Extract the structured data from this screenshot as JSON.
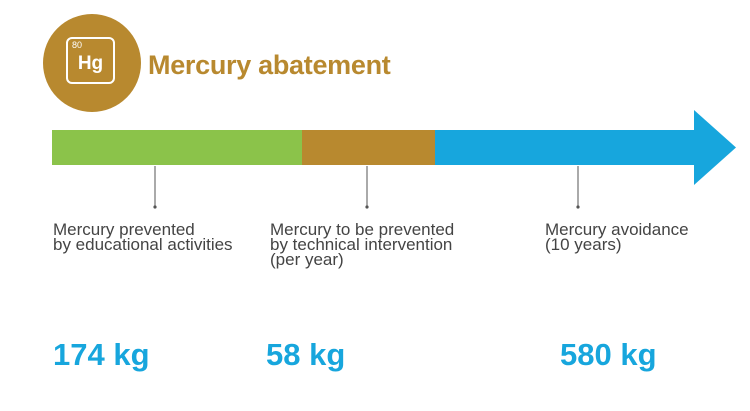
{
  "header": {
    "element_number": "80",
    "element_symbol": "Hg",
    "title": "Mercury abatement"
  },
  "colors": {
    "brand_gold": "#b8892f",
    "segment_green": "#8bc34a",
    "segment_gold": "#b8892f",
    "segment_blue": "#17a6dd",
    "value_blue": "#17a6dd"
  },
  "stages": [
    {
      "label": "Mercury prevented\nby educational activities",
      "value": "174 kg"
    },
    {
      "label": "Mercury to be prevented\nby technical intervention\n(per year)",
      "value": "58 kg"
    },
    {
      "label": "Mercury avoidance\n(10 years)",
      "value": "580 kg"
    }
  ]
}
